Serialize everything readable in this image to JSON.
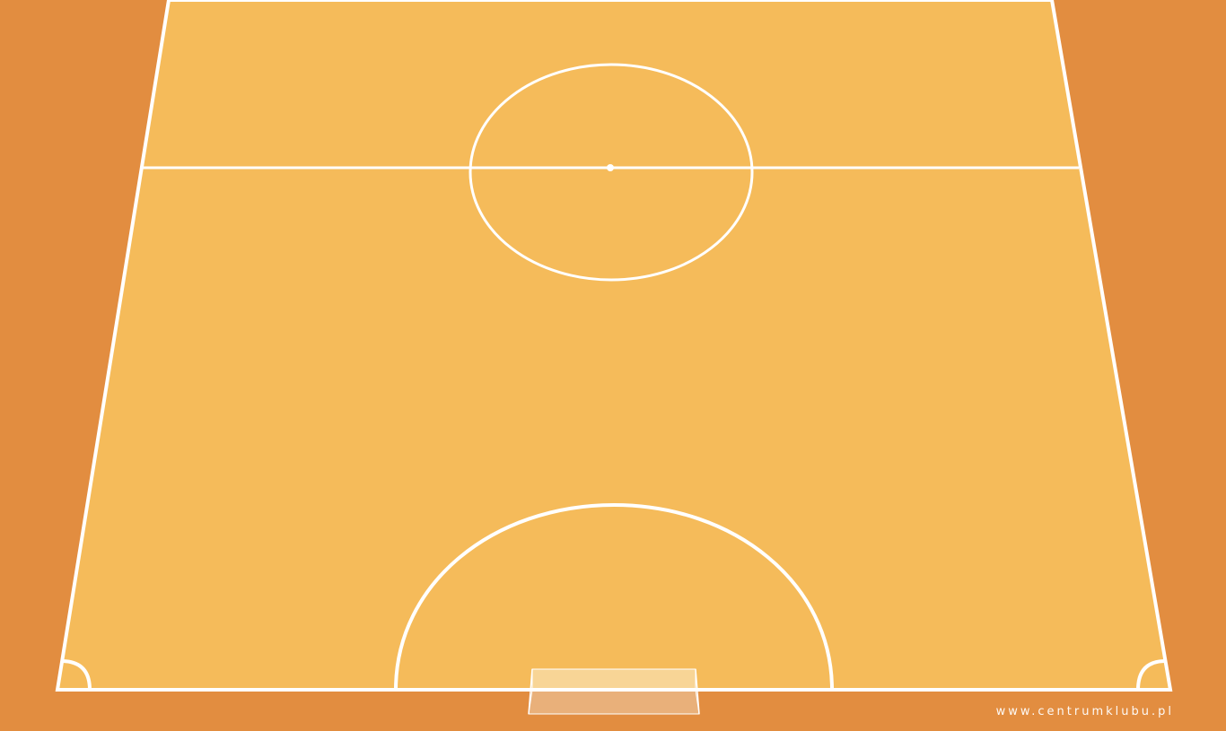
{
  "colors": {
    "background": "#e28d40",
    "court_surface": "#f5bb5a",
    "lines": "#ffffff",
    "goal_top": "#f8d596",
    "goal_bottom": "#e9b07a"
  },
  "credit": {
    "text": "www.centrumklubu.pl"
  }
}
